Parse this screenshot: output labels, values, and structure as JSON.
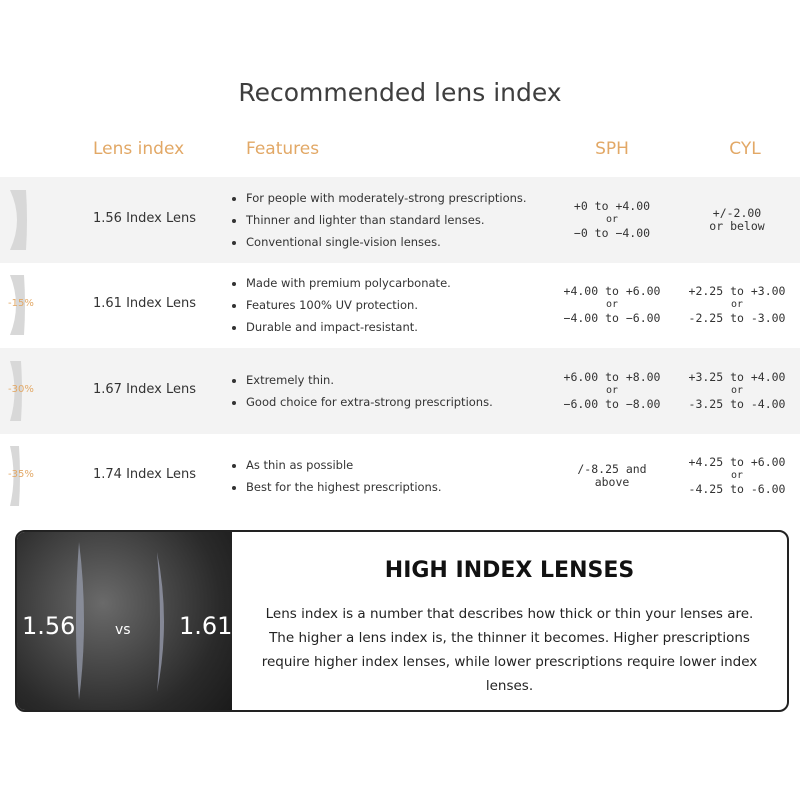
{
  "header": {
    "title": "Recommended lens index"
  },
  "table": {
    "columns": [
      "Lens index",
      "Features",
      "SPH",
      "CYL"
    ],
    "rows": [
      {
        "reduction": null,
        "name": "1.56 Index Lens",
        "features": [
          "For people with moderately-strong prescriptions.",
          "Thinner and lighter than standard lenses.",
          "Conventional single-vision lenses."
        ],
        "sph": [
          "+0 to +4.00",
          "or",
          "−0 to −4.00"
        ],
        "cyl": [
          "+/-2.00",
          "or below"
        ]
      },
      {
        "reduction": "-15%",
        "name": "1.61 Index Lens",
        "features": [
          "Made with premium polycarbonate.",
          "Features 100% UV protection.",
          "Durable and impact-resistant."
        ],
        "sph": [
          "+4.00 to +6.00",
          "or",
          "−4.00 to −6.00"
        ],
        "cyl": [
          "+2.25 to +3.00",
          "or",
          "-2.25 to -3.00"
        ]
      },
      {
        "reduction": "-30%",
        "name": "1.67 Index Lens",
        "features": [
          "Extremely thin.",
          "Good choice for extra-strong prescriptions."
        ],
        "sph": [
          "+6.00 to +8.00",
          "or",
          "−6.00 to −8.00"
        ],
        "cyl": [
          "+3.25 to +4.00",
          "or",
          "-3.25 to -4.00"
        ]
      },
      {
        "reduction": "-35%",
        "name": "1.74 Index Lens",
        "features": [
          "As thin as possible",
          "Best for the highest prescriptions."
        ],
        "sph": [
          "/-8.25 and",
          "above"
        ],
        "cyl": [
          "+4.25 to +6.00",
          "or",
          "-4.25 to -6.00"
        ]
      }
    ]
  },
  "panel": {
    "left_label": "1.56",
    "vs": "vs",
    "right_label": "1.61",
    "heading": "HIGH INDEX LENSES",
    "text": "Lens index is a number that describes how thick or thin your lenses are. The higher a lens   index is, the thinner it becomes. Higher prescriptions require higher index lenses, while lower prescriptions require lower index lenses."
  }
}
